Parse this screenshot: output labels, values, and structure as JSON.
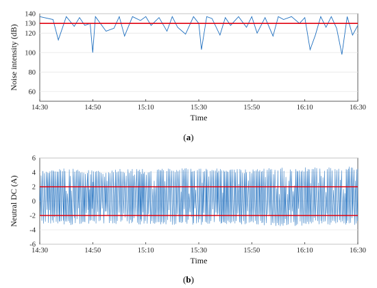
{
  "colors": {
    "series": "#1f6fbf",
    "threshold": "#e0000e",
    "grid": "#e6e6e6",
    "axis": "#333333"
  },
  "chart_data": [
    {
      "type": "line",
      "caption_letter": "a",
      "xlabel": "Time",
      "ylabel": "Noise intensity (dB)",
      "xlim": [
        "14:30",
        "16:30"
      ],
      "x_ticks": [
        "14:30",
        "14:50",
        "15:10",
        "15:30",
        "15:50",
        "16:10",
        "16:30"
      ],
      "ylim": [
        50,
        140
      ],
      "y_ticks": [
        60,
        80,
        100,
        120,
        140
      ],
      "threshold": {
        "value": 130,
        "label": "130"
      },
      "grid": true,
      "series": [
        {
          "values_description_free": true,
          "x": [
            "14:30",
            "14:35",
            "14:37",
            "14:40",
            "14:43",
            "14:45",
            "14:47",
            "14:49",
            "14:50",
            "14:51",
            "14:55",
            "14:58",
            "15:00",
            "15:02",
            "15:05",
            "15:08",
            "15:10",
            "15:12",
            "15:15",
            "15:18",
            "15:20",
            "15:22",
            "15:25",
            "15:28",
            "15:30",
            "15:31",
            "15:33",
            "15:35",
            "15:38",
            "15:40",
            "15:42",
            "15:45",
            "15:48",
            "15:50",
            "15:52",
            "15:55",
            "15:58",
            "16:00",
            "16:02",
            "16:05",
            "16:08",
            "16:10",
            "16:12",
            "16:14",
            "16:16",
            "16:18",
            "16:20",
            "16:22",
            "16:24",
            "16:26",
            "16:28",
            "16:30"
          ],
          "y": [
            137,
            134,
            113,
            137,
            127,
            136,
            128,
            130,
            100,
            137,
            122,
            125,
            137,
            117,
            137,
            133,
            137,
            128,
            136,
            122,
            137,
            126,
            119,
            137,
            130,
            103,
            137,
            135,
            118,
            136,
            128,
            137,
            126,
            137,
            120,
            136,
            117,
            137,
            134,
            137,
            130,
            136,
            103,
            118,
            137,
            126,
            137,
            125,
            98,
            137,
            118,
            128
          ]
        }
      ]
    },
    {
      "type": "line",
      "caption_letter": "b",
      "xlabel": "Time",
      "ylabel": "Neutral DC (A)",
      "xlim": [
        "14:30",
        "16:30"
      ],
      "x_ticks": [
        "14:30",
        "14:50",
        "15:10",
        "15:30",
        "15:50",
        "16:10",
        "16:30"
      ],
      "ylim": [
        -6,
        6
      ],
      "y_ticks": [
        -6,
        -4,
        -2,
        0,
        2,
        4,
        6
      ],
      "thresholds": [
        {
          "value": 2,
          "label": "2"
        },
        {
          "value": -2,
          "label": "-2"
        }
      ],
      "grid": true,
      "series": [
        {
          "x": [
            "14:30",
            "14:40",
            "14:50",
            "15:00",
            "15:10",
            "15:20",
            "15:30",
            "15:40",
            "15:50",
            "16:00",
            "16:10",
            "16:20",
            "16:30"
          ],
          "upper_envelope": [
            4.4,
            4.6,
            4.3,
            4.5,
            4.5,
            4.6,
            4.6,
            4.5,
            4.4,
            4.8,
            4.7,
            4.8,
            4.8
          ],
          "lower_envelope": [
            -3.1,
            -3.4,
            -3.1,
            -3.2,
            -3.3,
            -3.3,
            -3.3,
            -3.3,
            -3.2,
            -3.6,
            -3.4,
            -3.3,
            -3.3
          ]
        }
      ]
    }
  ]
}
